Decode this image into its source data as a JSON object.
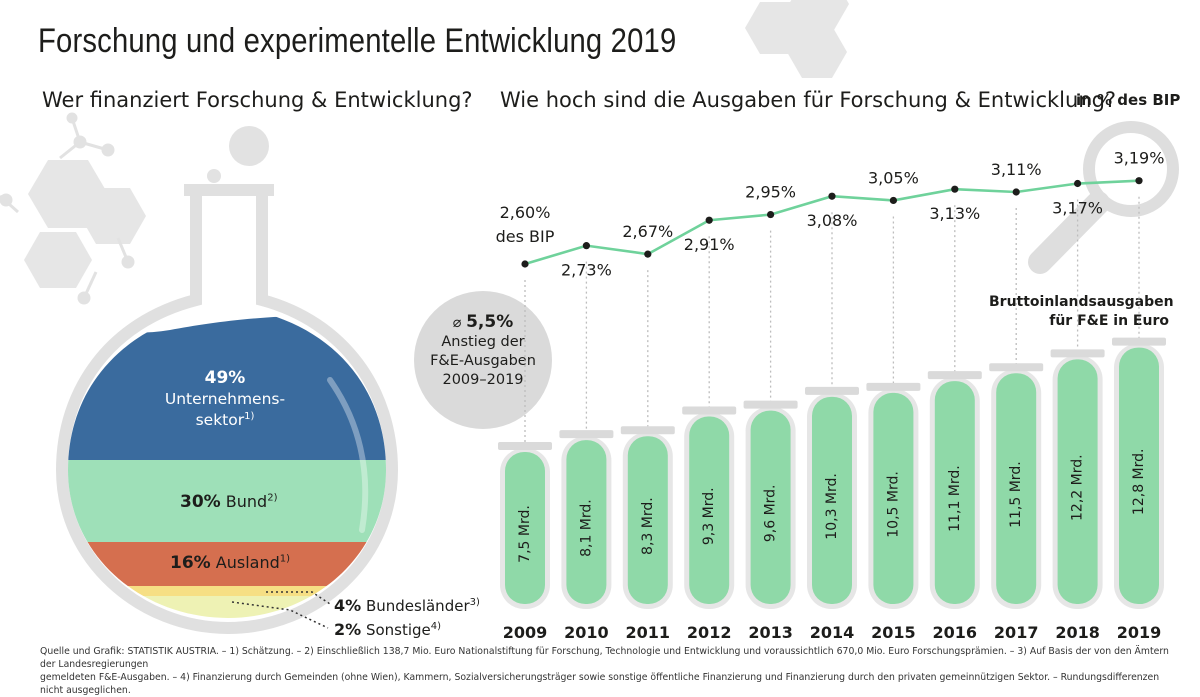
{
  "title": "Forschung und experimentelle Entwicklung 2019",
  "left_heading": "Wer finanziert Forschung & Entwicklung?",
  "right_heading": "Wie hoch sind die Ausgaben für Forschung & Entwicklung?",
  "unit_note": "in % des BIP",
  "legend_label": "Bruttoinlandsausgaben für F&E in Euro",
  "first_label_suffix": "des BIP",
  "avg_bubble": {
    "symbol": "⌀",
    "value": "5,5%",
    "line1": "Anstieg der",
    "line2": "F&E-Ausgaben",
    "line3": "2009–2019"
  },
  "colors": {
    "unternehmen": "#3a6b9e",
    "bund": "#9ee0b8",
    "ausland": "#d56f4f",
    "bundeslaender": "#f6df84",
    "sonstige": "#eef2b4",
    "line": "#6fd29b",
    "tube_fill": "#8fd9a8",
    "tube_glass": "#e6e6e6",
    "decor": "#e4e4e4"
  },
  "funding": {
    "unternehmen": {
      "pct": "49%",
      "label_line1": "Unternehmens-",
      "label_line2": "sektor",
      "note": "1)"
    },
    "bund": {
      "pct": "30%",
      "label": "Bund",
      "note": "2)"
    },
    "ausland": {
      "pct": "16%",
      "label": "Ausland",
      "note": "1)"
    },
    "bundeslaender": {
      "pct": "4%",
      "label": "Bundesländer",
      "note": "3)"
    },
    "sonstige": {
      "pct": "2%",
      "label": "Sonstige",
      "note": "4)"
    }
  },
  "footnote_line1": "Quelle und Grafik: STATISTIK AUSTRIA. – 1) Schätzung. – 2) Einschließlich 138,7 Mio. Euro Nationalstiftung für Forschung, Technologie und Entwicklung und voraussichtlich 670,0 Mio. Euro Forschungsprämien. – 3) Auf Basis der von den Ämtern der Landesregierungen",
  "footnote_line2": "gemeldeten F&E-Ausgaben. – 4) Finanzierung durch Gemeinden (ohne Wien), Kammern, Sozialversicherungsträger sowie sonstige öffentliche Finanzierung und Finanzierung durch den privaten gemeinnützigen Sektor. – Rundungsdifferenzen nicht ausgeglichen.",
  "chart_data": [
    {
      "type": "pie",
      "title": "Wer finanziert Forschung & Entwicklung?",
      "categories": [
        "Unternehmenssektor",
        "Bund",
        "Ausland",
        "Bundesländer",
        "Sonstige"
      ],
      "values": [
        49,
        30,
        16,
        4,
        2
      ]
    },
    {
      "type": "line",
      "title": "Wie hoch sind die Ausgaben für Forschung & Entwicklung?",
      "ylabel": "in % des BIP",
      "x": [
        "2009",
        "2010",
        "2011",
        "2012",
        "2013",
        "2014",
        "2015",
        "2016",
        "2017",
        "2018",
        "2019"
      ],
      "values": [
        2.6,
        2.73,
        2.67,
        2.91,
        2.95,
        3.08,
        3.05,
        3.13,
        3.11,
        3.17,
        3.19
      ],
      "value_labels": [
        "2,60%",
        "2,73%",
        "2,67%",
        "2,91%",
        "2,95%",
        "3,08%",
        "3,05%",
        "3,13%",
        "3,11%",
        "3,17%",
        "3,19%"
      ],
      "ylim": [
        2.5,
        3.3
      ]
    },
    {
      "type": "bar",
      "title": "Bruttoinlandsausgaben für F&E in Euro",
      "categories": [
        "2009",
        "2010",
        "2011",
        "2012",
        "2013",
        "2014",
        "2015",
        "2016",
        "2017",
        "2018",
        "2019"
      ],
      "values": [
        7.5,
        8.1,
        8.3,
        9.3,
        9.6,
        10.3,
        10.5,
        11.1,
        11.5,
        12.2,
        12.8
      ],
      "value_labels": [
        "7,5 Mrd.",
        "8,1 Mrd.",
        "8,3 Mrd.",
        "9,3 Mrd.",
        "9,6 Mrd.",
        "10,3 Mrd.",
        "10,5 Mrd.",
        "11,1 Mrd.",
        "11,5 Mrd.",
        "12,2 Mrd.",
        "12,8 Mrd."
      ]
    }
  ]
}
